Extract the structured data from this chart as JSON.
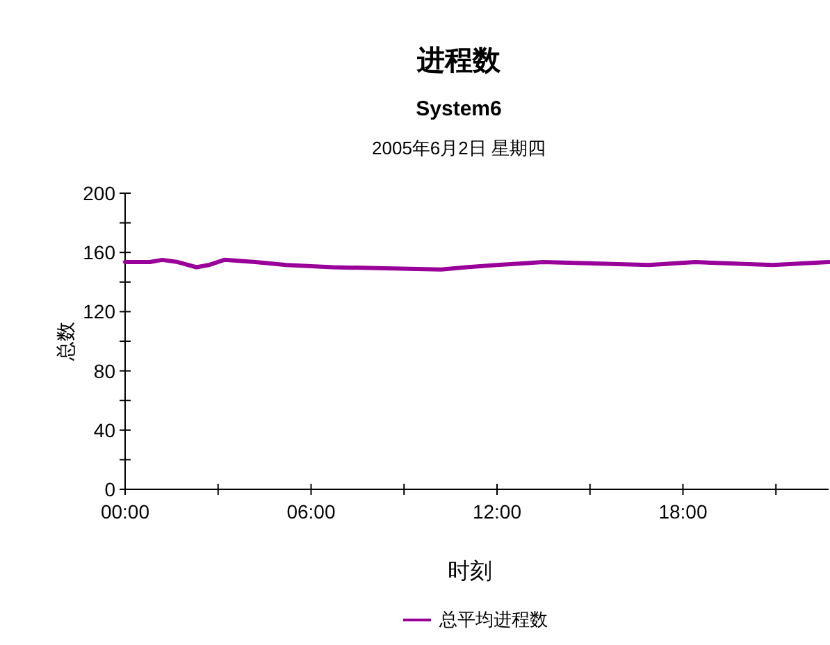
{
  "chart_data": {
    "type": "line",
    "title": "进程数",
    "subtitle": "System6",
    "annotations": [
      "2005年6月2日 星期四"
    ],
    "xlabel": "时刻",
    "ylabel": "总数",
    "x": [
      0,
      0.8,
      1.2,
      1.7,
      2.3,
      2.7,
      3.2,
      4.2,
      5.2,
      6.7,
      10.2,
      11,
      12,
      13.5,
      16.9,
      18.4,
      20.9,
      22.7
    ],
    "series": [
      {
        "name": "总平均进程数",
        "color": "#990099",
        "values": [
          153.5,
          153.5,
          155,
          153.5,
          150,
          151.5,
          155,
          153.5,
          151.5,
          150,
          148.5,
          150,
          151.5,
          153.5,
          151.5,
          153.5,
          151.5,
          153.5
        ]
      }
    ],
    "xlim": [
      0,
      22.7
    ],
    "xticks": [
      {
        "value": 0,
        "label": "00:00"
      },
      {
        "value": 3,
        "label": null
      },
      {
        "value": 6,
        "label": "06:00"
      },
      {
        "value": 9,
        "label": null
      },
      {
        "value": 12,
        "label": "12:00"
      },
      {
        "value": 15,
        "label": null
      },
      {
        "value": 18,
        "label": "18:00"
      },
      {
        "value": 21,
        "label": null
      }
    ],
    "ylim": [
      0,
      200
    ],
    "yticks": [
      0,
      {
        "value": 20,
        "label": null
      },
      40,
      {
        "value": 60,
        "label": null
      },
      80,
      {
        "value": 100,
        "label": null
      },
      120,
      {
        "value": 140,
        "label": null
      },
      160,
      {
        "value": 180,
        "label": null
      },
      200
    ],
    "grid": false,
    "legend": "bottom",
    "marker": "none",
    "line_style": "solid"
  }
}
